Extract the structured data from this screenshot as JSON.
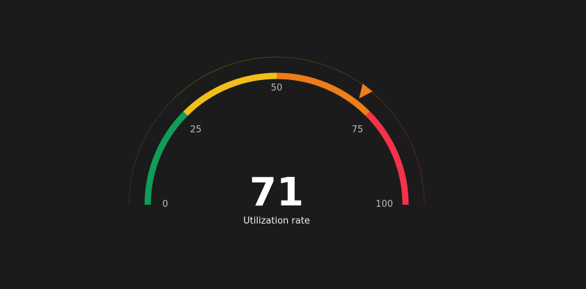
{
  "chart_data": {
    "type": "gauge",
    "min": 0,
    "max": 100,
    "value": 71,
    "value_label": "71",
    "label": "Utilization rate",
    "ticks": [
      {
        "value": 0,
        "label": "0"
      },
      {
        "value": 25,
        "label": "25"
      },
      {
        "value": 50,
        "label": "50"
      },
      {
        "value": 75,
        "label": "75"
      },
      {
        "value": 100,
        "label": "100"
      }
    ],
    "bands": [
      {
        "from": 0,
        "to": 25,
        "color": "#0f9d58"
      },
      {
        "from": 25,
        "to": 50,
        "color": "#f2be1c"
      },
      {
        "from": 50,
        "to": 75,
        "color": "#ef7d1a"
      },
      {
        "from": 75,
        "to": 100,
        "color": "#f3334a"
      }
    ],
    "pointer_color": "#ef7d1a",
    "value_color": "#ffffff",
    "label_color": "#eeeeee",
    "tick_color": "#bbbbbb"
  }
}
